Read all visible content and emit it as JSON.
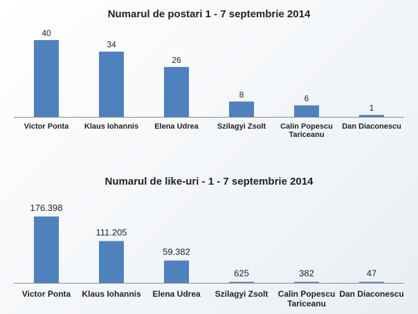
{
  "chart_data": [
    {
      "type": "bar",
      "title": "Numarul de postari 1 - 7 septembrie 2014",
      "categories": [
        [
          "Victor Ponta"
        ],
        [
          "Klaus Iohannis"
        ],
        [
          "Elena Udrea"
        ],
        [
          "Szilagyi Zsolt"
        ],
        [
          "Calin Popescu",
          "Tariceanu"
        ],
        [
          "Dan Diaconescu"
        ]
      ],
      "values": [
        40,
        34,
        26,
        8,
        6,
        1
      ],
      "value_labels": [
        "40",
        "34",
        "26",
        "8",
        "6",
        "1"
      ],
      "ylim": [
        0,
        40
      ],
      "bar_color": "#4f81bd",
      "grid": false,
      "legend": "none"
    },
    {
      "type": "bar",
      "title": "Numarul de like-uri - 1 - 7 septembrie 2014",
      "categories": [
        [
          "Victor Ponta"
        ],
        [
          "Klaus Iohannis"
        ],
        [
          "Elena Udrea"
        ],
        [
          "Szilagyi Zsolt"
        ],
        [
          "Calin Popescu",
          "Tariceanu"
        ],
        [
          "Dan Diaconescu"
        ]
      ],
      "values": [
        176398,
        111205,
        59382,
        625,
        382,
        47
      ],
      "value_labels": [
        "176.398",
        "111.205",
        "59.382",
        "625",
        "382",
        "47"
      ],
      "ylim": [
        0,
        176398
      ],
      "bar_color": "#4f81bd",
      "grid": false,
      "legend": "none"
    }
  ]
}
